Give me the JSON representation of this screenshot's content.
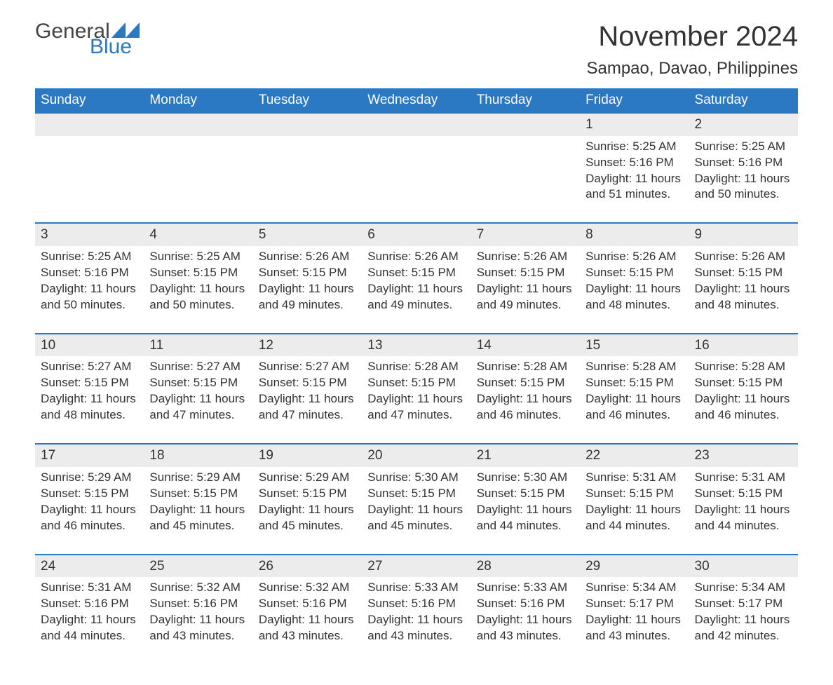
{
  "logo": {
    "text1": "General",
    "text2": "Blue",
    "tri_color": "#2b78c3"
  },
  "title": "November 2024",
  "location": "Sampao, Davao, Philippines",
  "colors": {
    "header_bg": "#2b78c3",
    "header_text": "#ffffff",
    "band_bg": "#ececec",
    "band_border": "#2b78c3",
    "body_text": "#333333",
    "page_bg": "#ffffff"
  },
  "typography": {
    "title_fontsize": 40,
    "location_fontsize": 24,
    "header_fontsize": 19,
    "daynum_fontsize": 19,
    "body_fontsize": 17,
    "font_family": "Arial"
  },
  "layout": {
    "columns": 7,
    "rows": 5,
    "first_day_column_index": 5
  },
  "weekdays": [
    "Sunday",
    "Monday",
    "Tuesday",
    "Wednesday",
    "Thursday",
    "Friday",
    "Saturday"
  ],
  "days": [
    {
      "n": 1,
      "sunrise": "5:25 AM",
      "sunset": "5:16 PM",
      "daylight": "11 hours and 51 minutes."
    },
    {
      "n": 2,
      "sunrise": "5:25 AM",
      "sunset": "5:16 PM",
      "daylight": "11 hours and 50 minutes."
    },
    {
      "n": 3,
      "sunrise": "5:25 AM",
      "sunset": "5:16 PM",
      "daylight": "11 hours and 50 minutes."
    },
    {
      "n": 4,
      "sunrise": "5:25 AM",
      "sunset": "5:15 PM",
      "daylight": "11 hours and 50 minutes."
    },
    {
      "n": 5,
      "sunrise": "5:26 AM",
      "sunset": "5:15 PM",
      "daylight": "11 hours and 49 minutes."
    },
    {
      "n": 6,
      "sunrise": "5:26 AM",
      "sunset": "5:15 PM",
      "daylight": "11 hours and 49 minutes."
    },
    {
      "n": 7,
      "sunrise": "5:26 AM",
      "sunset": "5:15 PM",
      "daylight": "11 hours and 49 minutes."
    },
    {
      "n": 8,
      "sunrise": "5:26 AM",
      "sunset": "5:15 PM",
      "daylight": "11 hours and 48 minutes."
    },
    {
      "n": 9,
      "sunrise": "5:26 AM",
      "sunset": "5:15 PM",
      "daylight": "11 hours and 48 minutes."
    },
    {
      "n": 10,
      "sunrise": "5:27 AM",
      "sunset": "5:15 PM",
      "daylight": "11 hours and 48 minutes."
    },
    {
      "n": 11,
      "sunrise": "5:27 AM",
      "sunset": "5:15 PM",
      "daylight": "11 hours and 47 minutes."
    },
    {
      "n": 12,
      "sunrise": "5:27 AM",
      "sunset": "5:15 PM",
      "daylight": "11 hours and 47 minutes."
    },
    {
      "n": 13,
      "sunrise": "5:28 AM",
      "sunset": "5:15 PM",
      "daylight": "11 hours and 47 minutes."
    },
    {
      "n": 14,
      "sunrise": "5:28 AM",
      "sunset": "5:15 PM",
      "daylight": "11 hours and 46 minutes."
    },
    {
      "n": 15,
      "sunrise": "5:28 AM",
      "sunset": "5:15 PM",
      "daylight": "11 hours and 46 minutes."
    },
    {
      "n": 16,
      "sunrise": "5:28 AM",
      "sunset": "5:15 PM",
      "daylight": "11 hours and 46 minutes."
    },
    {
      "n": 17,
      "sunrise": "5:29 AM",
      "sunset": "5:15 PM",
      "daylight": "11 hours and 46 minutes."
    },
    {
      "n": 18,
      "sunrise": "5:29 AM",
      "sunset": "5:15 PM",
      "daylight": "11 hours and 45 minutes."
    },
    {
      "n": 19,
      "sunrise": "5:29 AM",
      "sunset": "5:15 PM",
      "daylight": "11 hours and 45 minutes."
    },
    {
      "n": 20,
      "sunrise": "5:30 AM",
      "sunset": "5:15 PM",
      "daylight": "11 hours and 45 minutes."
    },
    {
      "n": 21,
      "sunrise": "5:30 AM",
      "sunset": "5:15 PM",
      "daylight": "11 hours and 44 minutes."
    },
    {
      "n": 22,
      "sunrise": "5:31 AM",
      "sunset": "5:15 PM",
      "daylight": "11 hours and 44 minutes."
    },
    {
      "n": 23,
      "sunrise": "5:31 AM",
      "sunset": "5:15 PM",
      "daylight": "11 hours and 44 minutes."
    },
    {
      "n": 24,
      "sunrise": "5:31 AM",
      "sunset": "5:16 PM",
      "daylight": "11 hours and 44 minutes."
    },
    {
      "n": 25,
      "sunrise": "5:32 AM",
      "sunset": "5:16 PM",
      "daylight": "11 hours and 43 minutes."
    },
    {
      "n": 26,
      "sunrise": "5:32 AM",
      "sunset": "5:16 PM",
      "daylight": "11 hours and 43 minutes."
    },
    {
      "n": 27,
      "sunrise": "5:33 AM",
      "sunset": "5:16 PM",
      "daylight": "11 hours and 43 minutes."
    },
    {
      "n": 28,
      "sunrise": "5:33 AM",
      "sunset": "5:16 PM",
      "daylight": "11 hours and 43 minutes."
    },
    {
      "n": 29,
      "sunrise": "5:34 AM",
      "sunset": "5:17 PM",
      "daylight": "11 hours and 43 minutes."
    },
    {
      "n": 30,
      "sunrise": "5:34 AM",
      "sunset": "5:17 PM",
      "daylight": "11 hours and 42 minutes."
    }
  ],
  "labels": {
    "sunrise": "Sunrise: ",
    "sunset": "Sunset: ",
    "daylight": "Daylight: "
  }
}
